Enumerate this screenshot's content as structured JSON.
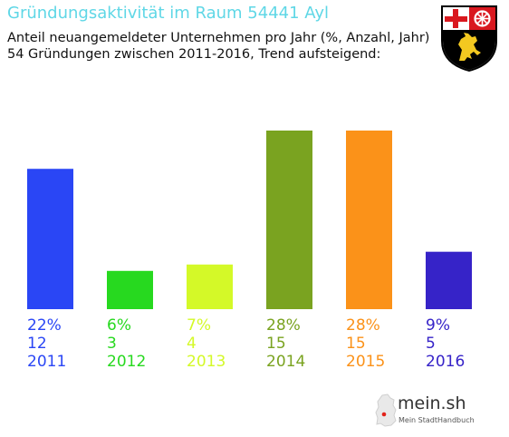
{
  "header": {
    "title": "Gründungsaktivität im Raum 54441 Ayl",
    "subtitle_line1": "Anteil neuangemeldeter Unternehmen pro Jahr (%, Anzahl, Jahr)",
    "subtitle_line2": "54 Gründungen zwischen 2011-2016, Trend aufsteigend:"
  },
  "crest": {
    "icon": "rhineland-palatinate-coat-of-arms"
  },
  "logo": {
    "name": "mein.sh",
    "tagline": "Mein StadtHandbuch",
    "icon": "germany-map-icon"
  },
  "chart_data": {
    "type": "bar",
    "title": "Gründungsaktivität im Raum 54441 Ayl",
    "ylim": [
      0,
      28
    ],
    "categories": [
      "2011",
      "2012",
      "2013",
      "2014",
      "2015",
      "2016"
    ],
    "percent_labels": [
      "22%",
      "6%",
      "7%",
      "28%",
      "28%",
      "9%"
    ],
    "percent_values": [
      22,
      6,
      7,
      28,
      28,
      9
    ],
    "counts": [
      12,
      3,
      4,
      15,
      15,
      5
    ],
    "count_labels": [
      "12",
      "3",
      "4",
      "15",
      "15",
      "5"
    ],
    "colors": [
      "#2a46f5",
      "#27d91f",
      "#d4f928",
      "#7aa320",
      "#fb9219",
      "#3623c8"
    ],
    "grid": false,
    "legend": "none"
  }
}
